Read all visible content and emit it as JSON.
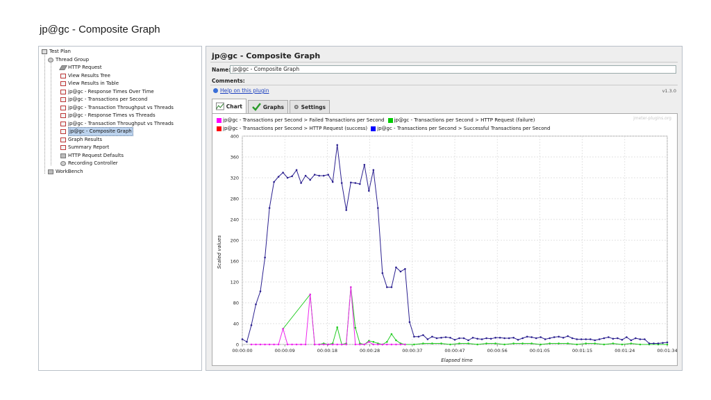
{
  "slide_title": "jp@gc - Composite Graph",
  "tree": {
    "items": [
      {
        "label": "Test Plan",
        "indent": 0,
        "icon": "beaker-icon"
      },
      {
        "label": "Thread Group",
        "indent": 1,
        "icon": "gear-icon"
      },
      {
        "label": "HTTP Request",
        "indent": 2,
        "icon": "pen-icon"
      },
      {
        "label": "View Results Tree",
        "indent": 2,
        "icon": "listener-icon"
      },
      {
        "label": "View Results in Table",
        "indent": 2,
        "icon": "listener-icon"
      },
      {
        "label": "jp@gc - Response Times Over Time",
        "indent": 2,
        "icon": "listener-icon"
      },
      {
        "label": "jp@gc - Transactions per Second",
        "indent": 2,
        "icon": "listener-icon"
      },
      {
        "label": "jp@gc - Transaction Throughput vs Threads",
        "indent": 2,
        "icon": "listener-icon"
      },
      {
        "label": "jp@gc - Response Times vs Threads",
        "indent": 2,
        "icon": "listener-icon"
      },
      {
        "label": "jp@gc - Transaction Throughput vs Threads",
        "indent": 2,
        "icon": "listener-icon"
      },
      {
        "label": "jp@gc - Composite Graph",
        "indent": 2,
        "icon": "listener-icon",
        "selected": true
      },
      {
        "label": "Graph Results",
        "indent": 2,
        "icon": "listener-icon"
      },
      {
        "label": "Summary Report",
        "indent": 2,
        "icon": "listener-icon"
      },
      {
        "label": "HTTP Request Defaults",
        "indent": 2,
        "icon": "config-icon"
      },
      {
        "label": "Recording Controller",
        "indent": 2,
        "icon": "gear-icon"
      },
      {
        "label": "WorkBench",
        "indent": 0,
        "icon": "workbench-icon"
      }
    ]
  },
  "panel": {
    "title": "jp@gc - Composite Graph",
    "name_label": "Name:",
    "name_value": "jp@gc - Composite Graph",
    "comments_label": "Comments:",
    "help_link": "Help on this plugin",
    "version": "v1.3.0",
    "tabs": [
      {
        "label": "Chart",
        "icon": "chart-icon",
        "active": true
      },
      {
        "label": "Graphs",
        "icon": "check-icon",
        "active": false
      },
      {
        "label": "Settings",
        "icon": "gear-icon",
        "active": false
      }
    ],
    "watermark": "jmeter-plugins.org"
  },
  "chart_data": {
    "type": "line",
    "xlabel": "Elapsed time",
    "ylabel": "Scaled values",
    "ylim": [
      0,
      400
    ],
    "yticks": [
      0,
      40,
      80,
      120,
      160,
      200,
      240,
      280,
      320,
      360,
      400
    ],
    "xticks": [
      "00:00:00",
      "00:00:09",
      "00:00:18",
      "00:00:28",
      "00:00:37",
      "00:00:47",
      "00:00:56",
      "00:01:05",
      "00:01:15",
      "00:01:24",
      "00:01:34"
    ],
    "xlim_seconds": [
      0,
      94
    ],
    "grid": true,
    "legend_position": "top",
    "legend": [
      {
        "name": "jp@gc - Transactions per Second > Failed Transactions per Second",
        "color": "#ff00ff"
      },
      {
        "name": "jp@gc - Transactions per Second > HTTP Request (failure)",
        "color": "#00cc00"
      },
      {
        "name": "jp@gc - Transactions per Second > HTTP Request (success)",
        "color": "#ff0000"
      },
      {
        "name": "jp@gc - Transactions per Second > Successful Transactions per Second",
        "color": "#0000ff"
      }
    ],
    "series": [
      {
        "name": "jp@gc - Transactions per Second > Successful Transactions per Second",
        "color": "#2a1f8f",
        "points": [
          [
            0,
            10
          ],
          [
            1,
            5
          ],
          [
            2,
            37
          ],
          [
            3,
            77
          ],
          [
            4,
            102
          ],
          [
            5,
            167
          ],
          [
            6,
            262
          ],
          [
            7,
            312
          ],
          [
            8,
            322
          ],
          [
            9,
            330
          ],
          [
            10,
            320
          ],
          [
            11,
            323
          ],
          [
            12,
            335
          ],
          [
            13,
            310
          ],
          [
            14,
            324
          ],
          [
            15,
            316
          ],
          [
            16,
            326
          ],
          [
            17,
            324
          ],
          [
            18,
            324
          ],
          [
            19,
            326
          ],
          [
            20,
            312
          ],
          [
            21,
            383
          ],
          [
            22,
            310
          ],
          [
            23,
            258
          ],
          [
            24,
            311
          ],
          [
            25,
            310
          ],
          [
            26,
            308
          ],
          [
            27,
            345
          ],
          [
            28,
            295
          ],
          [
            29,
            335
          ],
          [
            30,
            262
          ],
          [
            31,
            137
          ],
          [
            32,
            110
          ],
          [
            33,
            110
          ],
          [
            34,
            148
          ],
          [
            35,
            140
          ],
          [
            36,
            145
          ],
          [
            37,
            43
          ],
          [
            38,
            15
          ],
          [
            39,
            15
          ],
          [
            40,
            18
          ],
          [
            41,
            10
          ],
          [
            42,
            15
          ],
          [
            43,
            12
          ],
          [
            44,
            13
          ],
          [
            45,
            14
          ],
          [
            46,
            13
          ],
          [
            47,
            9
          ],
          [
            48,
            12
          ],
          [
            49,
            12
          ],
          [
            50,
            8
          ],
          [
            51,
            13
          ],
          [
            52,
            11
          ],
          [
            53,
            10
          ],
          [
            54,
            12
          ],
          [
            55,
            11
          ],
          [
            56,
            13
          ],
          [
            57,
            13
          ],
          [
            58,
            12
          ],
          [
            59,
            12
          ],
          [
            60,
            13
          ],
          [
            61,
            9
          ],
          [
            62,
            12
          ],
          [
            63,
            15
          ],
          [
            64,
            14
          ],
          [
            65,
            12
          ],
          [
            66,
            14
          ],
          [
            67,
            10
          ],
          [
            68,
            12
          ],
          [
            69,
            14
          ],
          [
            70,
            15
          ],
          [
            71,
            13
          ],
          [
            72,
            16
          ],
          [
            73,
            12
          ],
          [
            74,
            10
          ],
          [
            75,
            10
          ],
          [
            76,
            10
          ],
          [
            77,
            10
          ],
          [
            78,
            8
          ],
          [
            79,
            10
          ],
          [
            80,
            12
          ],
          [
            81,
            14
          ],
          [
            82,
            11
          ],
          [
            83,
            12
          ],
          [
            84,
            9
          ],
          [
            85,
            14
          ],
          [
            86,
            8
          ],
          [
            87,
            12
          ],
          [
            88,
            10
          ],
          [
            89,
            10
          ],
          [
            90,
            2
          ],
          [
            91,
            2
          ],
          [
            92,
            2
          ],
          [
            93,
            3
          ],
          [
            94,
            4
          ]
        ]
      },
      {
        "name": "jp@gc - Transactions per Second > HTTP Request (failure)",
        "color": "#22cc22",
        "points": [
          [
            9,
            30
          ],
          [
            15,
            96
          ],
          [
            16,
            0
          ],
          [
            17,
            0
          ],
          [
            18,
            2
          ],
          [
            19,
            0
          ],
          [
            20,
            2
          ],
          [
            21,
            33
          ],
          [
            22,
            0
          ],
          [
            23,
            2
          ],
          [
            24,
            110
          ],
          [
            25,
            32
          ],
          [
            26,
            2
          ],
          [
            27,
            0
          ],
          [
            28,
            7
          ],
          [
            29,
            5
          ],
          [
            30,
            2
          ],
          [
            31,
            0
          ],
          [
            32,
            5
          ],
          [
            33,
            20
          ],
          [
            34,
            8
          ],
          [
            35,
            2
          ],
          [
            36,
            0
          ],
          [
            38,
            0
          ],
          [
            40,
            2
          ],
          [
            42,
            2
          ],
          [
            44,
            2
          ],
          [
            46,
            0
          ],
          [
            48,
            2
          ],
          [
            50,
            2
          ],
          [
            52,
            0
          ],
          [
            54,
            2
          ],
          [
            56,
            2
          ],
          [
            58,
            0
          ],
          [
            60,
            2
          ],
          [
            62,
            2
          ],
          [
            64,
            2
          ],
          [
            66,
            0
          ],
          [
            68,
            2
          ],
          [
            70,
            2
          ],
          [
            72,
            2
          ],
          [
            74,
            0
          ],
          [
            76,
            2
          ],
          [
            78,
            2
          ],
          [
            80,
            0
          ],
          [
            82,
            2
          ],
          [
            84,
            0
          ],
          [
            86,
            2
          ],
          [
            88,
            0
          ],
          [
            90,
            0
          ],
          [
            92,
            0
          ],
          [
            94,
            0
          ]
        ]
      },
      {
        "name": "jp@gc - Transactions per Second > Failed Transactions per Second",
        "color": "#ee22ee",
        "points": [
          [
            2,
            0
          ],
          [
            3,
            0
          ],
          [
            4,
            0
          ],
          [
            5,
            0
          ],
          [
            6,
            0
          ],
          [
            7,
            0
          ],
          [
            8,
            0
          ],
          [
            9,
            30
          ],
          [
            10,
            0
          ],
          [
            11,
            0
          ],
          [
            12,
            0
          ],
          [
            13,
            0
          ],
          [
            14,
            0
          ],
          [
            15,
            96
          ],
          [
            16,
            0
          ],
          [
            17,
            0
          ],
          [
            18,
            0
          ],
          [
            19,
            0
          ],
          [
            20,
            0
          ],
          [
            21,
            0
          ],
          [
            22,
            0
          ],
          [
            23,
            0
          ],
          [
            24,
            110
          ],
          [
            25,
            0
          ],
          [
            26,
            0
          ],
          [
            27,
            0
          ],
          [
            28,
            5
          ],
          [
            29,
            0
          ],
          [
            30,
            0
          ],
          [
            31,
            0
          ],
          [
            32,
            0
          ],
          [
            33,
            0
          ],
          [
            34,
            0
          ],
          [
            35,
            0
          ],
          [
            36,
            0
          ]
        ]
      }
    ]
  }
}
